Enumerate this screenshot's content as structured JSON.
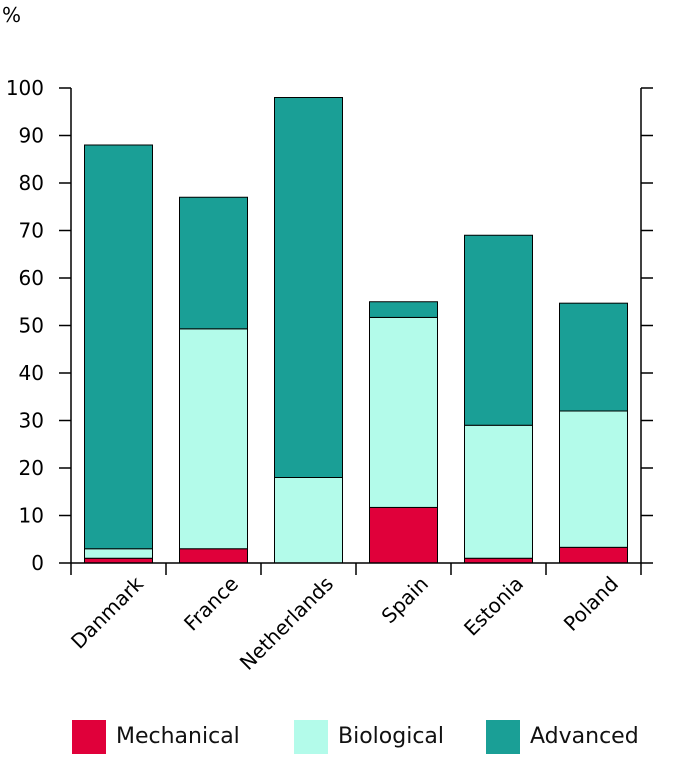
{
  "chart_data": {
    "type": "bar",
    "stacked": true,
    "ylabel": "%",
    "ylim": [
      0,
      100
    ],
    "yticks": [
      0,
      10,
      20,
      30,
      40,
      50,
      60,
      70,
      80,
      90,
      100
    ],
    "categories": [
      "Danmark",
      "France",
      "Netherlands",
      "Spain",
      "Estonia",
      "Poland"
    ],
    "series": [
      {
        "name": "Mechanical",
        "color": "#e0003a",
        "values": [
          1,
          3,
          0,
          11.7,
          1,
          3.3
        ]
      },
      {
        "name": "Biological",
        "color": "#b3fbea",
        "values": [
          2,
          46.3,
          18,
          40,
          28,
          28.7
        ]
      },
      {
        "name": "Advanced",
        "color": "#1a9f96",
        "values": [
          85,
          27.7,
          80,
          3.3,
          40,
          22.7
        ]
      }
    ],
    "grid": false,
    "legend_position": "bottom"
  }
}
